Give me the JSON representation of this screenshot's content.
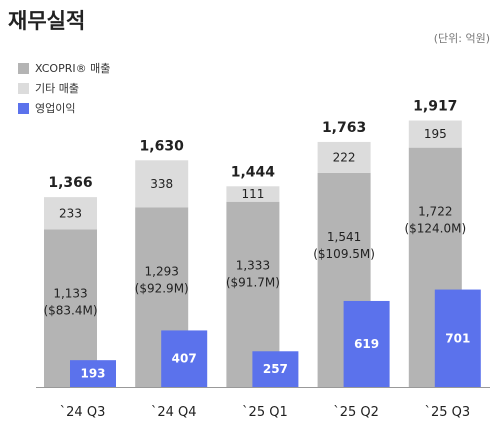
{
  "header": {
    "title": "재무실적",
    "unit": "(단위: 억원)"
  },
  "colors": {
    "xcopri": "#b4b4b4",
    "other": "#dcdcdc",
    "op": "#5b72ec"
  },
  "chart_data": {
    "type": "bar",
    "title": "재무실적",
    "unit_label": "(단위: 억원)",
    "legend_position": "top-left",
    "categories": [
      "`24 Q3",
      "`24 Q4",
      "`25 Q1",
      "`25 Q2",
      "`25 Q3"
    ],
    "totals": [
      "1,366",
      "1,630",
      "1,444",
      "1,763",
      "1,917"
    ],
    "total_values": [
      1366,
      1630,
      1444,
      1763,
      1917
    ],
    "series": [
      {
        "name": "XCOPRI® 매출",
        "values": [
          1133,
          1293,
          1333,
          1541,
          1722
        ],
        "labels": [
          "1,133",
          "1,293",
          "1,333",
          "1,541",
          "1,722"
        ],
        "usd_labels": [
          "($83.4M)",
          "($92.9M)",
          "($91.7M)",
          "($109.5M)",
          "($124.0M)"
        ]
      },
      {
        "name": "기타 매출",
        "values": [
          233,
          338,
          111,
          222,
          195
        ],
        "labels": [
          "233",
          "338",
          "111",
          "222",
          "195"
        ]
      },
      {
        "name": "영업이익",
        "values": [
          193,
          407,
          257,
          619,
          701
        ],
        "labels": [
          "193",
          "407",
          "257",
          "619",
          "701"
        ]
      }
    ]
  }
}
